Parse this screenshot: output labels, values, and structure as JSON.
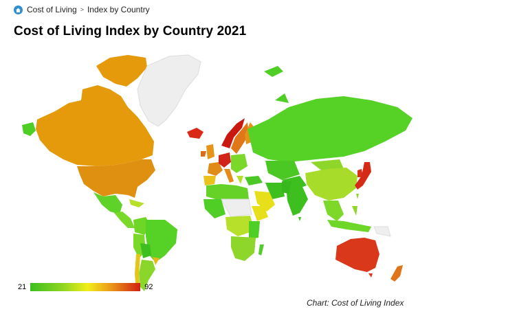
{
  "breadcrumb": {
    "home_icon": "home-icon",
    "link_label": "Cost of Living",
    "separator": ">",
    "current": "Index by Country"
  },
  "title": "Cost of Living Index by Country 2021",
  "legend": {
    "min": "21",
    "max": "92"
  },
  "credit": "Chart: Cost of Living Index",
  "colors": {
    "low": "#3cbf1f",
    "mid": "#f0ee1a",
    "high": "#cf1f14",
    "no_data": "#eeeeee",
    "orange": "#e49a0a"
  }
}
